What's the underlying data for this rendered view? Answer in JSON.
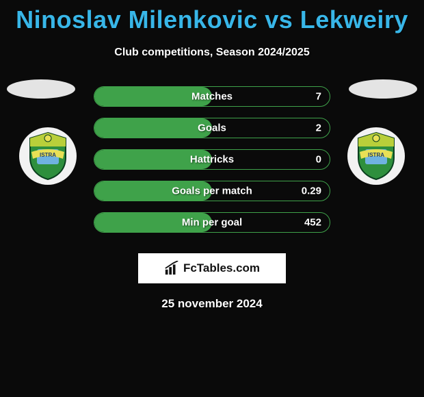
{
  "title": "Ninoslav Milenkovic vs Lekweiry",
  "subtitle": "Club competitions, Season 2024/2025",
  "date": "25 november 2024",
  "branding_text": "FcTables.com",
  "colors": {
    "accent": "#38b6e8",
    "bar_border": "#3fa24a",
    "bar_fill": "#3fa24a",
    "background": "#0a0a0a",
    "text": "#ffffff",
    "branding_bg": "#ffffff",
    "crest_bg": "#f2f2f2"
  },
  "crest_colors": {
    "shield_top": "#b9cf3a",
    "shield_bottom": "#2e8f3d",
    "shield_border": "#0a3f1e",
    "inner": "#6fb2e0",
    "banner": "#e8e055",
    "banner_text": "#1b3b6b"
  },
  "stats": [
    {
      "label": "Matches",
      "left_pct": 50,
      "right_val": "7",
      "right_pct": 0
    },
    {
      "label": "Goals",
      "left_pct": 50,
      "right_val": "2",
      "right_pct": 0
    },
    {
      "label": "Hattricks",
      "left_pct": 50,
      "right_val": "0",
      "right_pct": 0
    },
    {
      "label": "Goals per match",
      "left_pct": 50,
      "right_val": "0.29",
      "right_pct": 0
    },
    {
      "label": "Min per goal",
      "left_pct": 50,
      "right_val": "452",
      "right_pct": 0
    }
  ]
}
